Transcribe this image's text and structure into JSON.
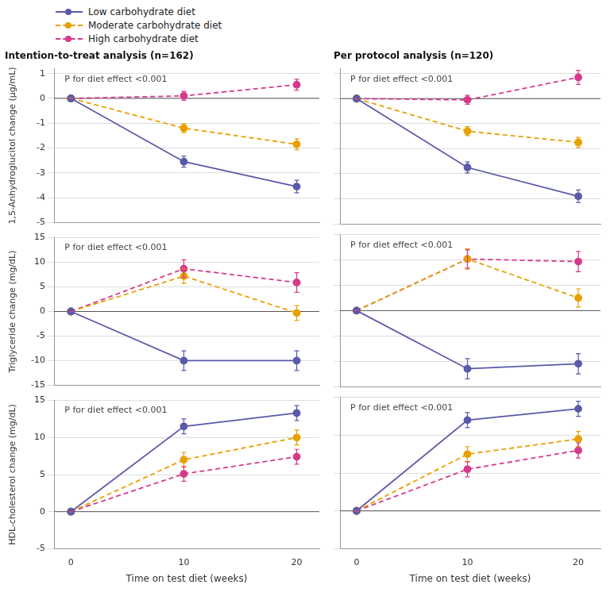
{
  "chart_data": [
    {
      "type": "line",
      "title": "Intention-to-treat analysis (n=162)",
      "y_label": "1,5-Anhydroglucitol change (μg/mL)",
      "annotations": [
        "P for diet effect <0.001"
      ],
      "legend": "upper left",
      "grid": "y",
      "tick_labels": "y",
      "x": [
        0,
        10,
        20
      ],
      "xlim": [
        -1.5,
        22
      ],
      "xticks": [
        0,
        10,
        20
      ],
      "ylim": [
        -5,
        1.2
      ],
      "yticks": [
        -5,
        -4,
        -3,
        -2,
        -1,
        0,
        1
      ],
      "hline": 0,
      "series": [
        {
          "name": "Low carbohydrate diet",
          "color": "#5a5aaa",
          "line_style": "solid",
          "marker": "circle",
          "values": [
            0,
            -2.55,
            -3.55
          ],
          "yerr": [
            0,
            0.22,
            0.25
          ]
        },
        {
          "name": "Moderate carbohydrate diet",
          "color": "#e8a000",
          "line_style": "dashed",
          "marker": "circle",
          "values": [
            0,
            -1.2,
            -1.85
          ],
          "yerr": [
            0,
            0.18,
            0.22
          ]
        },
        {
          "name": "High carbohydrate diet",
          "color": "#d63a8a",
          "line_style": "dashed",
          "marker": "circle",
          "values": [
            0,
            0.1,
            0.55
          ],
          "yerr": [
            0,
            0.18,
            0.22
          ]
        }
      ]
    },
    {
      "type": "line",
      "title": "Per protocol analysis (n=120)",
      "annotations": [
        "P for diet effect <0.001"
      ],
      "grid": "y",
      "tick_labels": false,
      "x": [
        0,
        10,
        20
      ],
      "xlim": [
        -1.5,
        22
      ],
      "xticks": [
        0,
        10,
        20
      ],
      "ylim": [
        -5,
        1.2
      ],
      "yticks": [
        -5,
        -4,
        -3,
        -2,
        -1,
        0,
        1
      ],
      "hline": 0,
      "series": [
        {
          "name": "Low carbohydrate diet",
          "color": "#5a5aaa",
          "line_style": "solid",
          "marker": "circle",
          "values": [
            0,
            -2.75,
            -3.9
          ],
          "yerr": [
            0,
            0.22,
            0.25
          ]
        },
        {
          "name": "Moderate carbohydrate diet",
          "color": "#e8a000",
          "line_style": "dashed",
          "marker": "circle",
          "values": [
            0,
            -1.3,
            -1.75
          ],
          "yerr": [
            0,
            0.18,
            0.2
          ]
        },
        {
          "name": "High carbohydrate diet",
          "color": "#d63a8a",
          "line_style": "dashed",
          "marker": "circle",
          "values": [
            0,
            -0.05,
            0.85
          ],
          "yerr": [
            0,
            0.18,
            0.28
          ]
        }
      ]
    },
    {
      "type": "line",
      "y_label": "Triglyceride change (mg/dL)",
      "annotations": [
        "P for diet effect <0.001"
      ],
      "grid": "y",
      "tick_labels": "y",
      "x": [
        0,
        10,
        20
      ],
      "xlim": [
        -1.5,
        22
      ],
      "xticks": [
        0,
        10,
        20
      ],
      "ylim": [
        -15,
        15
      ],
      "yticks": [
        -15,
        -10,
        -5,
        0,
        5,
        10,
        15
      ],
      "hline": 0,
      "series": [
        {
          "name": "Low carbohydrate diet",
          "color": "#5a5aaa",
          "line_style": "solid",
          "marker": "circle",
          "values": [
            0,
            -10,
            -10
          ],
          "yerr": [
            0,
            2.0,
            2.0
          ]
        },
        {
          "name": "Moderate carbohydrate diet",
          "color": "#e8a000",
          "line_style": "dashed",
          "marker": "circle",
          "values": [
            0,
            7.2,
            -0.3
          ],
          "yerr": [
            0,
            1.5,
            1.5
          ]
        },
        {
          "name": "High carbohydrate diet",
          "color": "#d63a8a",
          "line_style": "dashed",
          "marker": "circle",
          "values": [
            0,
            8.7,
            5.9
          ],
          "yerr": [
            0,
            1.8,
            2.0
          ]
        }
      ]
    },
    {
      "type": "line",
      "annotations": [
        "P for diet effect <0.001"
      ],
      "grid": "y",
      "tick_labels": false,
      "x": [
        0,
        10,
        20
      ],
      "xlim": [
        -1.5,
        22
      ],
      "xticks": [
        0,
        10,
        20
      ],
      "ylim": [
        -15,
        15
      ],
      "yticks": [
        -15,
        -10,
        -5,
        0,
        5,
        10,
        15
      ],
      "hline": 0,
      "series": [
        {
          "name": "Low carbohydrate diet",
          "color": "#5a5aaa",
          "line_style": "solid",
          "marker": "circle",
          "values": [
            0,
            -11.5,
            -10.5
          ],
          "yerr": [
            0,
            2.0,
            2.0
          ]
        },
        {
          "name": "Moderate carbohydrate diet",
          "color": "#e8a000",
          "line_style": "dashed",
          "marker": "circle",
          "values": [
            0,
            10.2,
            2.5
          ],
          "yerr": [
            0,
            2.0,
            1.8
          ]
        },
        {
          "name": "High carbohydrate diet",
          "color": "#d63a8a",
          "line_style": "dashed",
          "marker": "circle",
          "values": [
            0,
            10.2,
            9.7
          ],
          "yerr": [
            0,
            1.8,
            2.0
          ]
        }
      ]
    },
    {
      "type": "line",
      "y_label": "HDL-cholesterol change (mg/dL)",
      "x_label": "Time on test diet (weeks)",
      "annotations": [
        "P for diet effect <0.001"
      ],
      "grid": "y",
      "x": [
        0,
        10,
        20
      ],
      "xlim": [
        -1.5,
        22
      ],
      "xticks": [
        0,
        10,
        20
      ],
      "ylim": [
        -5,
        15
      ],
      "yticks": [
        -5,
        0,
        5,
        10,
        15
      ],
      "hline": 0,
      "series": [
        {
          "name": "Low carbohydrate diet",
          "color": "#5a5aaa",
          "line_style": "solid",
          "marker": "circle",
          "values": [
            0,
            11.5,
            13.3
          ],
          "yerr": [
            0,
            1.0,
            1.0
          ]
        },
        {
          "name": "Moderate carbohydrate diet",
          "color": "#e8a000",
          "line_style": "dashed",
          "marker": "circle",
          "values": [
            0,
            7.0,
            10.0
          ],
          "yerr": [
            0,
            1.0,
            1.0
          ]
        },
        {
          "name": "High carbohydrate diet",
          "color": "#d63a8a",
          "line_style": "dashed",
          "marker": "circle",
          "values": [
            0,
            5.1,
            7.4
          ],
          "yerr": [
            0,
            1.0,
            1.0
          ]
        }
      ]
    },
    {
      "type": "line",
      "x_label": "Time on test diet (weeks)",
      "annotations": [
        "P for diet effect <0.001"
      ],
      "grid": "y",
      "tick_labels": "x",
      "x": [
        0,
        10,
        20
      ],
      "xlim": [
        -1.5,
        22
      ],
      "xticks": [
        0,
        10,
        20
      ],
      "ylim": [
        -5,
        15
      ],
      "yticks": [
        -5,
        0,
        5,
        10,
        15
      ],
      "hline": 0,
      "series": [
        {
          "name": "Low carbohydrate diet",
          "color": "#5a5aaa",
          "line_style": "solid",
          "marker": "circle",
          "values": [
            0,
            12.0,
            13.5
          ],
          "yerr": [
            0,
            1.0,
            1.0
          ]
        },
        {
          "name": "Moderate carbohydrate diet",
          "color": "#e8a000",
          "line_style": "dashed",
          "marker": "circle",
          "values": [
            0,
            7.5,
            9.5
          ],
          "yerr": [
            0,
            1.0,
            1.0
          ]
        },
        {
          "name": "High carbohydrate diet",
          "color": "#d63a8a",
          "line_style": "dashed",
          "marker": "circle",
          "values": [
            0,
            5.5,
            8.0
          ],
          "yerr": [
            0,
            1.0,
            1.0
          ]
        }
      ]
    }
  ]
}
